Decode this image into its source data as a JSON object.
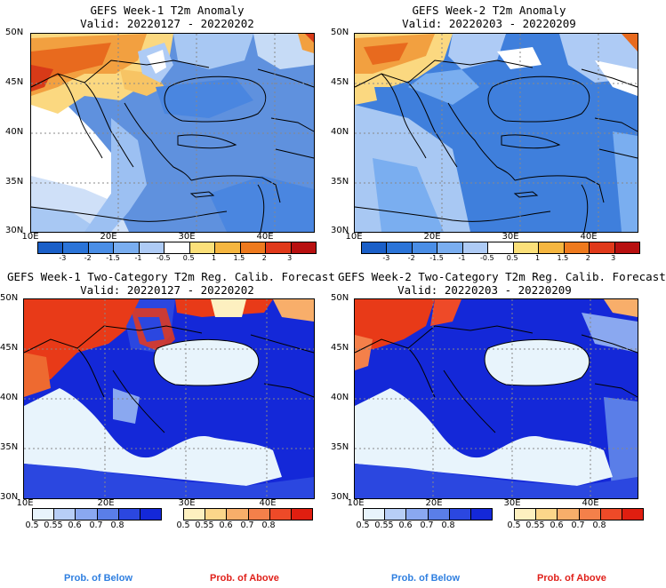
{
  "panels": [
    {
      "title": "GEFS Week-1 T2m Anomaly",
      "valid": "Valid: 20220127 - 20220202"
    },
    {
      "title": "GEFS Week-2 T2m Anomaly",
      "valid": "Valid: 20220203 - 20220209"
    },
    {
      "title": "GEFS Week-1 Two-Category T2m Reg. Calib. Forecast",
      "valid": "Valid: 20220127 - 20220202"
    },
    {
      "title": "GEFS Week-2 Two-Category T2m Reg. Calib. Forecast",
      "valid": "Valid: 20220203 - 20220209"
    }
  ],
  "lat_labels": [
    "50N",
    "45N",
    "40N",
    "35N",
    "30N"
  ],
  "lon_labels": [
    "10E",
    "20E",
    "30E",
    "40E"
  ],
  "anomaly_colorbar": {
    "labels": [
      "-3",
      "-2",
      "-1.5",
      "-1",
      "-0.5",
      "0.5",
      "1",
      "1.5",
      "2",
      "3"
    ],
    "colors": [
      "#1a5fc8",
      "#2b74d8",
      "#4a8ee6",
      "#7aaef0",
      "#aecbf5",
      "#ffffff",
      "#fbe07a",
      "#f5b640",
      "#ee7a1e",
      "#e0391a",
      "#b81010"
    ]
  },
  "prob_colorbar": {
    "labels": [
      "0.5",
      "0.55",
      "0.6",
      "0.7",
      "0.8"
    ],
    "below_colors": [
      "#e8f4fc",
      "#b7cef6",
      "#8aa8f0",
      "#5a7ee8",
      "#2b47e0",
      "#1428d8"
    ],
    "above_colors": [
      "#fdf0c0",
      "#fbd68a",
      "#f8ae6a",
      "#f4804a",
      "#ee4a28",
      "#e01e10"
    ]
  },
  "legend": {
    "below": "Prob. of Below",
    "above": "Prob. of Above",
    "below_color": "#2f7fe0",
    "above_color": "#e0201a"
  }
}
